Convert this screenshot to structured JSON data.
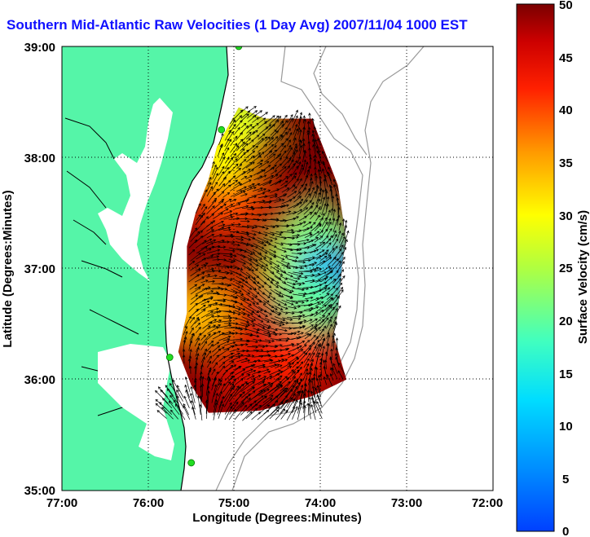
{
  "title": "Southern Mid-Atlantic Raw Velocities (1 Day Avg) 2007/11/04 1000 EST",
  "xlabel": "Longitude (Degrees:Minutes)",
  "ylabel": "Latitude (Degrees:Minutes)",
  "colorbar_label": "Surface Velocity (cm/s)",
  "x_ticks": [
    "77:00",
    "76:00",
    "75:00",
    "74:00",
    "73:00",
    "72:00"
  ],
  "y_ticks": [
    "39:00",
    "38:00",
    "37:00",
    "36:00",
    "35:00"
  ],
  "colorbar_ticks": [
    "50",
    "45",
    "40",
    "35",
    "30",
    "25",
    "20",
    "15",
    "10",
    "5",
    "0"
  ],
  "colors": {
    "land": "#55f5a8",
    "water": "#ffffff",
    "title": "#1010ff",
    "bathymetry": "#9a9a9a",
    "station": "#22dd22"
  },
  "chart_data": {
    "type": "heatmap",
    "title": "Southern Mid-Atlantic Raw Velocities (1 Day Avg) 2007/11/04 1000 EST",
    "xlabel": "Longitude (Degrees:Minutes)",
    "ylabel": "Latitude (Degrees:Minutes)",
    "xlim": [
      -77,
      -72
    ],
    "ylim": [
      35,
      39
    ],
    "grid": true,
    "colorbar": {
      "label": "Surface Velocity (cm/s)",
      "range": [
        0,
        50
      ],
      "colormap": "jet"
    },
    "coverage_polygon": [
      [
        -74.95,
        38.45
      ],
      [
        -74.65,
        38.35
      ],
      [
        -74.1,
        38.35
      ],
      [
        -73.8,
        37.75
      ],
      [
        -73.7,
        37.25
      ],
      [
        -73.75,
        37.05
      ],
      [
        -73.8,
        36.6
      ],
      [
        -73.85,
        36.4
      ],
      [
        -73.7,
        36.0
      ],
      [
        -74.1,
        35.85
      ],
      [
        -74.7,
        35.72
      ],
      [
        -75.3,
        35.7
      ],
      [
        -75.5,
        35.95
      ],
      [
        -75.65,
        36.25
      ],
      [
        -75.55,
        36.6
      ],
      [
        -75.55,
        37.2
      ],
      [
        -75.45,
        37.5
      ],
      [
        -75.3,
        37.8
      ],
      [
        -75.2,
        38.1
      ]
    ],
    "velocity_regions": [
      {
        "lon": -74.35,
        "lat": 37.6,
        "value": 48
      },
      {
        "lon": -74.05,
        "lat": 37.95,
        "value": 50
      },
      {
        "lon": -75.1,
        "lat": 37.6,
        "value": 40
      },
      {
        "lon": -74.3,
        "lat": 37.05,
        "value": 25
      },
      {
        "lon": -74.0,
        "lat": 37.25,
        "value": 22
      },
      {
        "lon": -73.95,
        "lat": 36.9,
        "value": 8
      },
      {
        "lon": -74.1,
        "lat": 36.65,
        "value": 20
      },
      {
        "lon": -74.9,
        "lat": 36.7,
        "value": 46
      },
      {
        "lon": -75.45,
        "lat": 36.6,
        "value": 34
      },
      {
        "lon": -74.9,
        "lat": 36.1,
        "value": 45
      },
      {
        "lon": -74.9,
        "lat": 38.35,
        "value": 27
      },
      {
        "lon": -75.15,
        "lat": 38.05,
        "value": 30
      },
      {
        "lon": -74.3,
        "lat": 36.2,
        "value": 42
      }
    ],
    "stations": [
      {
        "lon": -74.95,
        "lat": 39.0
      },
      {
        "lon": -75.15,
        "lat": 38.25
      },
      {
        "lon": -75.75,
        "lat": 36.2
      },
      {
        "lon": -75.5,
        "lat": 35.25
      }
    ]
  }
}
